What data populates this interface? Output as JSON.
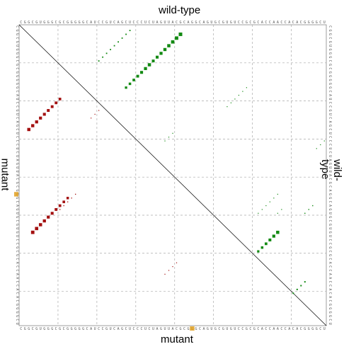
{
  "labels": {
    "top": "wild-type",
    "bottom": "mutant",
    "left": "mutant",
    "right": "wild-type"
  },
  "sequences": {
    "wildtype": "CGGCGUGGGCGCGGGGGCAUCCGUCAGCUCCCUCUAGUUACGCAGGCAGUGCGUGUCCGCGCACCAACCACACGGGGCU",
    "mutant": "CGGCGUGGGCGCGGGGGCAUCCGUCAGCUCCCUCUAGUUACGCGGGCAGUGCGUGUCCGCGCACCAACCACACGGGGCU"
  },
  "mutation_position": 44,
  "colors": {
    "wildtype_pairs": "#138a13",
    "mutant_pairs": "#a31010",
    "mutation_marker": "#e0a020",
    "grid": "#aaaaaa",
    "diagonal": "#000000"
  }
}
